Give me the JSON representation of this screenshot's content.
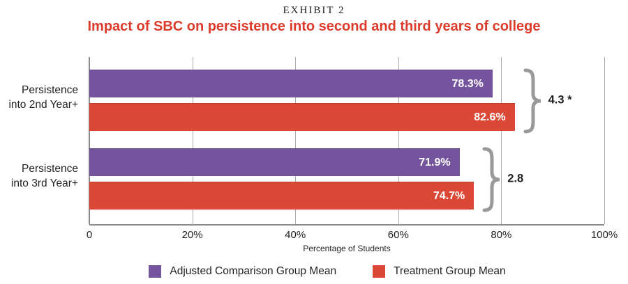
{
  "header": {
    "exhibit": "EXHIBIT 2",
    "title": "Impact of SBC on persistence into second and third years of college"
  },
  "chart_data": {
    "type": "bar",
    "orientation": "horizontal",
    "title": "Impact of SBC on persistence into second and third years of college",
    "categories": [
      "Persistence into 2nd Year+",
      "Persistence into 3rd Year+"
    ],
    "category_lines": [
      [
        "Persistence",
        "into 2nd Year+"
      ],
      [
        "Persistence",
        "into 3rd Year+"
      ]
    ],
    "series": [
      {
        "name": "Adjusted Comparison Group Mean",
        "color": "#75549e",
        "values": [
          78.3,
          71.9
        ],
        "labels": [
          "78.3%",
          "71.9%"
        ]
      },
      {
        "name": "Treatment Group Mean",
        "color": "#dc4836",
        "values": [
          82.6,
          74.7
        ],
        "labels": [
          "82.6%",
          "74.7%"
        ]
      }
    ],
    "differences": [
      "4.3 *",
      "2.8"
    ],
    "xlabel": "Percentage of Students",
    "xlim": [
      0,
      100
    ],
    "xticks": [
      {
        "pos": 0,
        "label": "0"
      },
      {
        "pos": 20,
        "label": "20%"
      },
      {
        "pos": 40,
        "label": "40%"
      },
      {
        "pos": 60,
        "label": "60%"
      },
      {
        "pos": 80,
        "label": "80%"
      },
      {
        "pos": 100,
        "label": "100%"
      }
    ],
    "grid": "vertical",
    "legend_position": "bottom"
  },
  "colors": {
    "purple": "#75549e",
    "red": "#dc4836",
    "title_red": "#dc3a2b",
    "text": "#231f20",
    "gridline": "#a9abad",
    "axis": "#8a8c8f",
    "brace": "#97999b",
    "bar_value_text": "#ffffff"
  }
}
